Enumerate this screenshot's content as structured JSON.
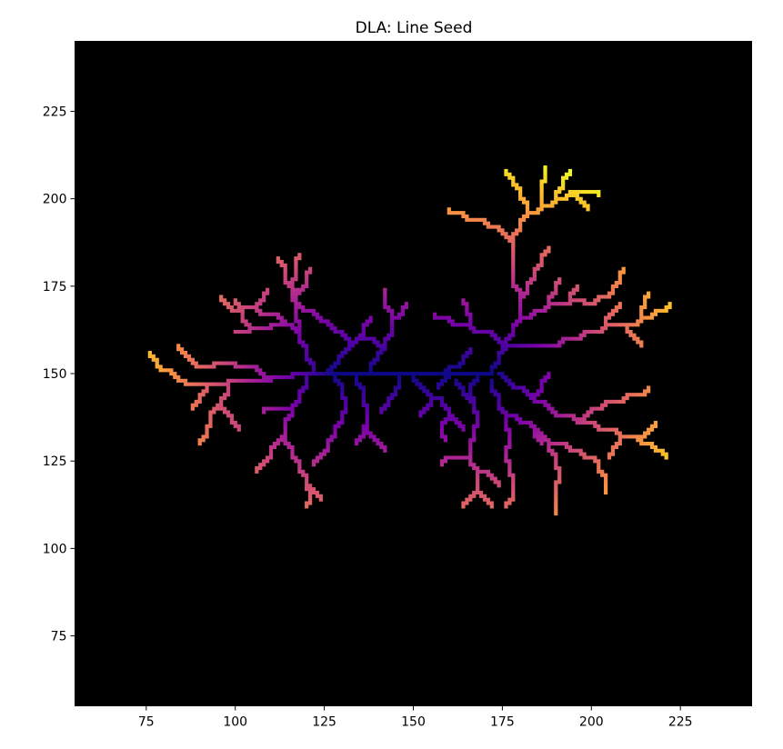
{
  "chart_data": {
    "type": "heatmap",
    "title": "DLA: Line Seed",
    "xlabel": "",
    "ylabel": "",
    "xlim": [
      55,
      245
    ],
    "ylim": [
      55,
      245
    ],
    "x_ticks": [
      75,
      100,
      125,
      150,
      175,
      200,
      225
    ],
    "y_ticks": [
      75,
      100,
      125,
      150,
      175,
      200,
      225
    ],
    "x_tick_labels": [
      "75",
      "100",
      "125",
      "150",
      "175",
      "200",
      "225"
    ],
    "y_tick_labels": [
      "75",
      "100",
      "125",
      "150",
      "175",
      "200",
      "225"
    ],
    "colormap": "plasma",
    "background_color": "#000000",
    "grid": false,
    "seed": {
      "orientation": "horizontal",
      "y": 150,
      "x_range": [
        128,
        172
      ]
    },
    "branches": [
      [
        [
          128,
          150
        ],
        [
          122,
          150
        ],
        [
          116,
          149
        ],
        [
          110,
          148
        ],
        [
          104,
          148
        ],
        [
          98,
          147
        ],
        [
          92,
          147
        ],
        [
          86,
          148
        ],
        [
          82,
          151
        ],
        [
          78,
          153
        ],
        [
          76,
          156
        ]
      ],
      [
        [
          110,
          148
        ],
        [
          106,
          152
        ],
        [
          100,
          153
        ],
        [
          94,
          152
        ],
        [
          88,
          154
        ],
        [
          84,
          158
        ]
      ],
      [
        [
          98,
          147
        ],
        [
          96,
          142
        ],
        [
          93,
          138
        ],
        [
          92,
          134
        ],
        [
          90,
          130
        ]
      ],
      [
        [
          92,
          147
        ],
        [
          90,
          143
        ],
        [
          88,
          140
        ]
      ],
      [
        [
          96,
          142
        ],
        [
          99,
          137
        ],
        [
          101,
          134
        ]
      ],
      [
        [
          122,
          150
        ],
        [
          120,
          155
        ],
        [
          118,
          160
        ],
        [
          116,
          164
        ],
        [
          112,
          167
        ],
        [
          106,
          169
        ],
        [
          102,
          168
        ],
        [
          98,
          170
        ],
        [
          96,
          172
        ]
      ],
      [
        [
          118,
          160
        ],
        [
          117,
          166
        ],
        [
          116,
          172
        ],
        [
          117,
          178
        ],
        [
          118,
          184
        ]
      ],
      [
        [
          117,
          172
        ],
        [
          114,
          177
        ],
        [
          112,
          183
        ]
      ],
      [
        [
          117,
          172
        ],
        [
          120,
          176
        ],
        [
          121,
          180
        ]
      ],
      [
        [
          116,
          164
        ],
        [
          110,
          163
        ],
        [
          104,
          162
        ],
        [
          100,
          162
        ]
      ],
      [
        [
          104,
          162
        ],
        [
          102,
          166
        ],
        [
          100,
          171
        ]
      ],
      [
        [
          106,
          169
        ],
        [
          108,
          172
        ],
        [
          109,
          174
        ]
      ],
      [
        [
          126,
          150
        ],
        [
          129,
          154
        ],
        [
          132,
          158
        ],
        [
          130,
          162
        ],
        [
          126,
          165
        ],
        [
          122,
          168
        ],
        [
          118,
          170
        ]
      ],
      [
        [
          132,
          158
        ],
        [
          136,
          162
        ],
        [
          138,
          166
        ]
      ],
      [
        [
          120,
          149
        ],
        [
          118,
          144
        ],
        [
          116,
          140
        ],
        [
          114,
          136
        ],
        [
          114,
          132
        ],
        [
          116,
          128
        ],
        [
          118,
          124
        ],
        [
          120,
          120
        ],
        [
          121,
          116
        ],
        [
          120,
          112
        ]
      ],
      [
        [
          114,
          132
        ],
        [
          110,
          128
        ],
        [
          108,
          124
        ],
        [
          106,
          122
        ]
      ],
      [
        [
          120,
          120
        ],
        [
          122,
          116
        ],
        [
          124,
          114
        ]
      ],
      [
        [
          116,
          140
        ],
        [
          112,
          140
        ],
        [
          108,
          139
        ]
      ],
      [
        [
          128,
          150
        ],
        [
          130,
          146
        ],
        [
          131,
          142
        ],
        [
          130,
          138
        ],
        [
          128,
          134
        ],
        [
          126,
          130
        ],
        [
          124,
          126
        ],
        [
          122,
          124
        ]
      ],
      [
        [
          134,
          150
        ],
        [
          136,
          145
        ],
        [
          137,
          140
        ],
        [
          136,
          134
        ],
        [
          134,
          130
        ]
      ],
      [
        [
          136,
          134
        ],
        [
          140,
          130
        ],
        [
          142,
          128
        ]
      ],
      [
        [
          138,
          151
        ],
        [
          140,
          155
        ],
        [
          142,
          158
        ],
        [
          144,
          162
        ],
        [
          144,
          166
        ],
        [
          142,
          170
        ],
        [
          142,
          174
        ]
      ],
      [
        [
          144,
          166
        ],
        [
          147,
          168
        ],
        [
          148,
          170
        ]
      ],
      [
        [
          142,
          158
        ],
        [
          139,
          160
        ],
        [
          136,
          161
        ]
      ],
      [
        [
          146,
          150
        ],
        [
          145,
          145
        ],
        [
          143,
          142
        ],
        [
          141,
          139
        ]
      ],
      [
        [
          150,
          150
        ],
        [
          152,
          146
        ],
        [
          155,
          143
        ],
        [
          158,
          142
        ],
        [
          160,
          139
        ],
        [
          162,
          136
        ],
        [
          164,
          134
        ]
      ],
      [
        [
          155,
          143
        ],
        [
          154,
          140
        ],
        [
          152,
          138
        ]
      ],
      [
        [
          160,
          139
        ],
        [
          158,
          135
        ],
        [
          159,
          131
        ]
      ],
      [
        [
          156,
          150
        ],
        [
          160,
          152
        ],
        [
          164,
          154
        ],
        [
          166,
          157
        ]
      ],
      [
        [
          162,
          148
        ],
        [
          164,
          145
        ],
        [
          166,
          142
        ]
      ],
      [
        [
          160,
          150
        ],
        [
          157,
          146
        ]
      ],
      [
        [
          172,
          150
        ],
        [
          174,
          154
        ],
        [
          176,
          158
        ],
        [
          178,
          162
        ],
        [
          180,
          166
        ],
        [
          180,
          170
        ],
        [
          182,
          174
        ],
        [
          184,
          178
        ],
        [
          186,
          182
        ],
        [
          188,
          186
        ]
      ],
      [
        [
          180,
          170
        ],
        [
          178,
          176
        ],
        [
          178,
          182
        ],
        [
          178,
          188
        ],
        [
          180,
          192
        ],
        [
          182,
          196
        ],
        [
          186,
          198
        ],
        [
          190,
          200
        ],
        [
          194,
          202
        ],
        [
          198,
          202
        ],
        [
          202,
          201
        ]
      ],
      [
        [
          178,
          188
        ],
        [
          174,
          192
        ],
        [
          170,
          194
        ],
        [
          164,
          196
        ],
        [
          160,
          197
        ]
      ],
      [
        [
          182,
          196
        ],
        [
          180,
          201
        ],
        [
          178,
          205
        ],
        [
          176,
          208
        ]
      ],
      [
        [
          186,
          198
        ],
        [
          186,
          202
        ],
        [
          187,
          206
        ],
        [
          187,
          209
        ]
      ],
      [
        [
          190,
          200
        ],
        [
          192,
          204
        ],
        [
          194,
          208
        ]
      ],
      [
        [
          194,
          202
        ],
        [
          196,
          200
        ],
        [
          199,
          197
        ]
      ],
      [
        [
          180,
          166
        ],
        [
          184,
          168
        ],
        [
          188,
          170
        ],
        [
          194,
          171
        ],
        [
          198,
          170
        ],
        [
          202,
          172
        ],
        [
          206,
          174
        ],
        [
          208,
          177
        ],
        [
          209,
          180
        ]
      ],
      [
        [
          188,
          170
        ],
        [
          190,
          174
        ],
        [
          191,
          177
        ]
      ],
      [
        [
          194,
          171
        ],
        [
          196,
          175
        ]
      ],
      [
        [
          176,
          158
        ],
        [
          184,
          158
        ],
        [
          192,
          160
        ],
        [
          198,
          162
        ],
        [
          204,
          164
        ],
        [
          210,
          164
        ],
        [
          214,
          166
        ],
        [
          218,
          168
        ],
        [
          222,
          170
        ]
      ],
      [
        [
          204,
          164
        ],
        [
          206,
          168
        ],
        [
          208,
          170
        ]
      ],
      [
        [
          214,
          166
        ],
        [
          215,
          170
        ],
        [
          216,
          173
        ]
      ],
      [
        [
          210,
          164
        ],
        [
          212,
          160
        ],
        [
          214,
          158
        ]
      ],
      [
        [
          176,
          158
        ],
        [
          172,
          162
        ],
        [
          166,
          164
        ],
        [
          160,
          166
        ],
        [
          156,
          167
        ]
      ],
      [
        [
          166,
          164
        ],
        [
          165,
          168
        ],
        [
          164,
          171
        ]
      ],
      [
        [
          174,
          150
        ],
        [
          178,
          146
        ],
        [
          184,
          142
        ],
        [
          190,
          138
        ],
        [
          196,
          136
        ],
        [
          202,
          134
        ],
        [
          208,
          132
        ],
        [
          214,
          130
        ],
        [
          218,
          128
        ],
        [
          221,
          126
        ]
      ],
      [
        [
          184,
          142
        ],
        [
          186,
          146
        ],
        [
          188,
          150
        ]
      ],
      [
        [
          196,
          136
        ],
        [
          200,
          140
        ],
        [
          204,
          142
        ],
        [
          210,
          144
        ],
        [
          216,
          146
        ]
      ],
      [
        [
          208,
          132
        ],
        [
          206,
          128
        ],
        [
          205,
          126
        ]
      ],
      [
        [
          214,
          130
        ],
        [
          216,
          134
        ],
        [
          218,
          136
        ]
      ],
      [
        [
          172,
          148
        ],
        [
          174,
          143
        ],
        [
          176,
          138
        ],
        [
          177,
          133
        ],
        [
          176,
          128
        ],
        [
          177,
          124
        ],
        [
          178,
          120
        ],
        [
          178,
          116
        ],
        [
          176,
          112
        ]
      ],
      [
        [
          176,
          138
        ],
        [
          180,
          136
        ],
        [
          184,
          134
        ],
        [
          188,
          130
        ],
        [
          190,
          126
        ],
        [
          191,
          122
        ],
        [
          190,
          118
        ],
        [
          190,
          114
        ],
        [
          190,
          110
        ]
      ],
      [
        [
          188,
          130
        ],
        [
          194,
          128
        ],
        [
          198,
          126
        ],
        [
          202,
          124
        ],
        [
          204,
          120
        ],
        [
          204,
          116
        ]
      ],
      [
        [
          184,
          134
        ],
        [
          186,
          130
        ]
      ],
      [
        [
          168,
          150
        ],
        [
          166,
          146
        ],
        [
          167,
          142
        ],
        [
          168,
          138
        ],
        [
          167,
          134
        ],
        [
          166,
          130
        ],
        [
          166,
          126
        ],
        [
          168,
          122
        ],
        [
          168,
          118
        ],
        [
          166,
          114
        ],
        [
          164,
          112
        ]
      ],
      [
        [
          168,
          122
        ],
        [
          172,
          120
        ],
        [
          174,
          118
        ]
      ],
      [
        [
          166,
          126
        ],
        [
          162,
          126
        ],
        [
          158,
          124
        ]
      ],
      [
        [
          168,
          118
        ],
        [
          170,
          114
        ],
        [
          172,
          112
        ]
      ]
    ]
  }
}
